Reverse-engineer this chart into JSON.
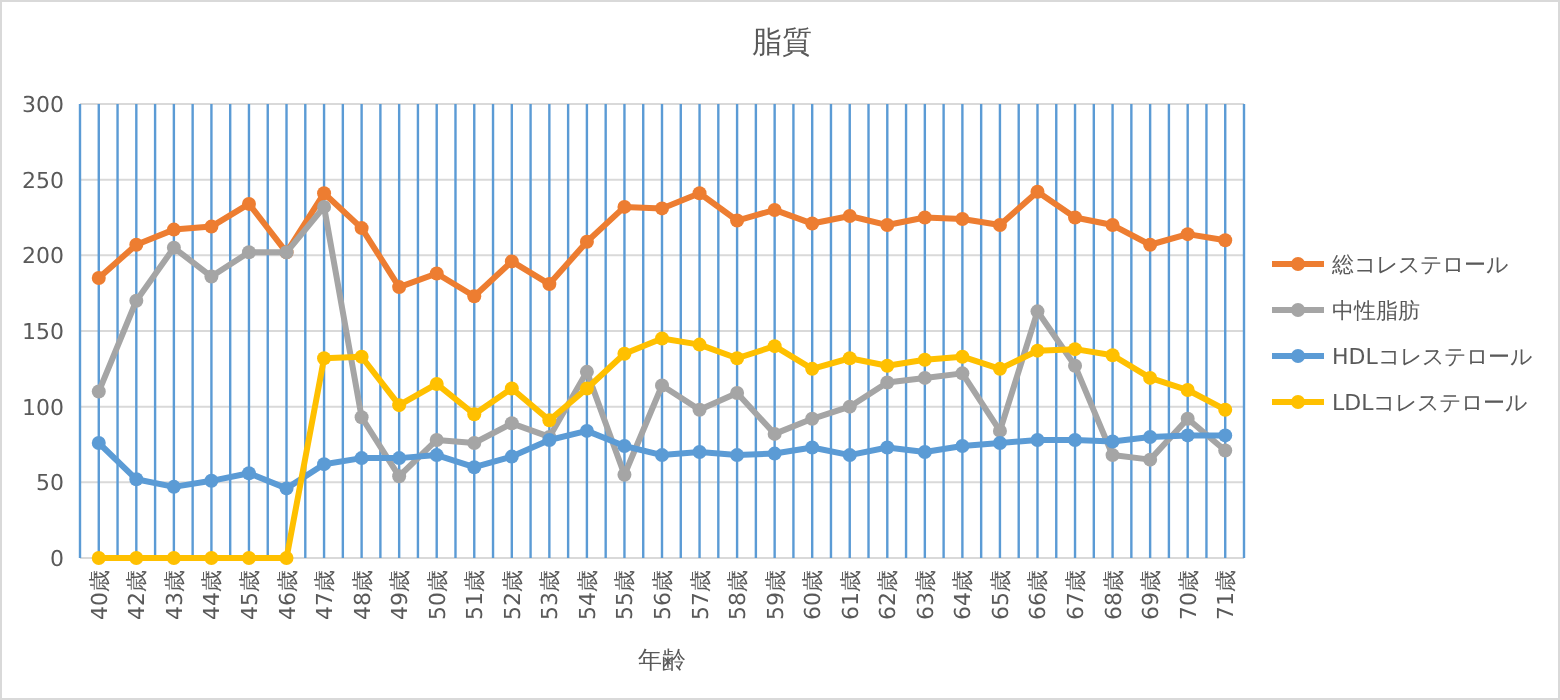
{
  "chart_data": {
    "type": "line",
    "title": "脂質",
    "xlabel": "年齢",
    "categories": [
      "40歳",
      "42歳",
      "43歳",
      "44歳",
      "45歳",
      "46歳",
      "47歳",
      "48歳",
      "49歳",
      "50歳",
      "51歳",
      "52歳",
      "53歳",
      "54歳",
      "55歳",
      "56歳",
      "57歳",
      "58歳",
      "59歳",
      "60歳",
      "61歳",
      "62歳",
      "63歳",
      "64歳",
      "65歳",
      "66歳",
      "67歳",
      "68歳",
      "69歳",
      "70歳",
      "71歳"
    ],
    "series": [
      {
        "name": "総コレステロール",
        "color": "#ed7d31",
        "values": [
          185,
          207,
          217,
          219,
          234,
          202,
          241,
          218,
          179,
          188,
          173,
          196,
          181,
          209,
          232,
          231,
          241,
          223,
          230,
          221,
          226,
          220,
          225,
          224,
          220,
          242,
          225,
          220,
          207,
          214,
          210
        ]
      },
      {
        "name": "中性脂肪",
        "color": "#a5a5a5",
        "values": [
          110,
          170,
          205,
          186,
          202,
          202,
          232,
          93,
          54,
          78,
          76,
          89,
          80,
          123,
          55,
          114,
          98,
          109,
          82,
          92,
          100,
          116,
          119,
          122,
          84,
          163,
          127,
          68,
          65,
          92,
          71
        ]
      },
      {
        "name": "HDLコレステロール",
        "color": "#5b9bd5",
        "values": [
          76,
          52,
          47,
          51,
          56,
          46,
          62,
          66,
          66,
          68,
          60,
          67,
          78,
          84,
          74,
          68,
          70,
          68,
          69,
          73,
          68,
          73,
          70,
          74,
          76,
          78,
          78,
          77,
          80,
          81,
          81
        ]
      },
      {
        "name": "LDLコレステロール",
        "color": "#ffc000",
        "values": [
          0,
          0,
          0,
          0,
          0,
          0,
          132,
          133,
          101,
          115,
          95,
          112,
          91,
          112,
          135,
          145,
          141,
          132,
          140,
          125,
          132,
          127,
          131,
          133,
          125,
          137,
          138,
          134,
          119,
          111,
          98
        ]
      }
    ],
    "ylim": [
      0,
      300
    ],
    "yticks": [
      0,
      50,
      100,
      150,
      200,
      250,
      300
    ],
    "grid": true,
    "legend": "right",
    "marker": "circle",
    "line_style": "solid"
  }
}
